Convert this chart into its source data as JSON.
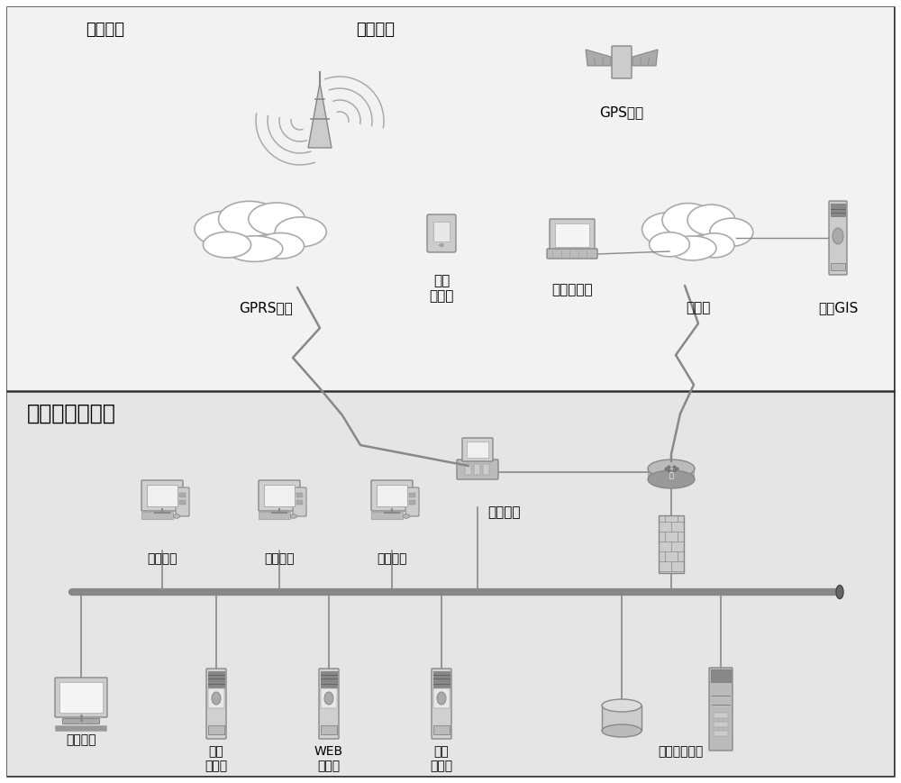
{
  "top_label": "各种车辆",
  "top_label2": "各种车辆",
  "gps_label": "GPS卫星",
  "gprs_label": "GPRS网络",
  "mobile_label": "手机\n监控端",
  "remote_label": "远程监控端",
  "internet_label": "互联网",
  "base_label": "基地GIS",
  "center_title": "车联网系统中心",
  "gateway_label": "通信网关",
  "monitor_labels": [
    "监控终端",
    "监控终端",
    "监控终端"
  ],
  "monitor_bottom_label": "监控终端",
  "server_labels": [
    "通信\n服务器",
    "WEB\n服务器",
    "应用\n服务器",
    "数据库服务器"
  ],
  "line_color": "#555555",
  "text_color": "#000000",
  "top_bg": "#f0f0f0",
  "bot_bg": "#e0e0e0",
  "border_color": "#333333"
}
